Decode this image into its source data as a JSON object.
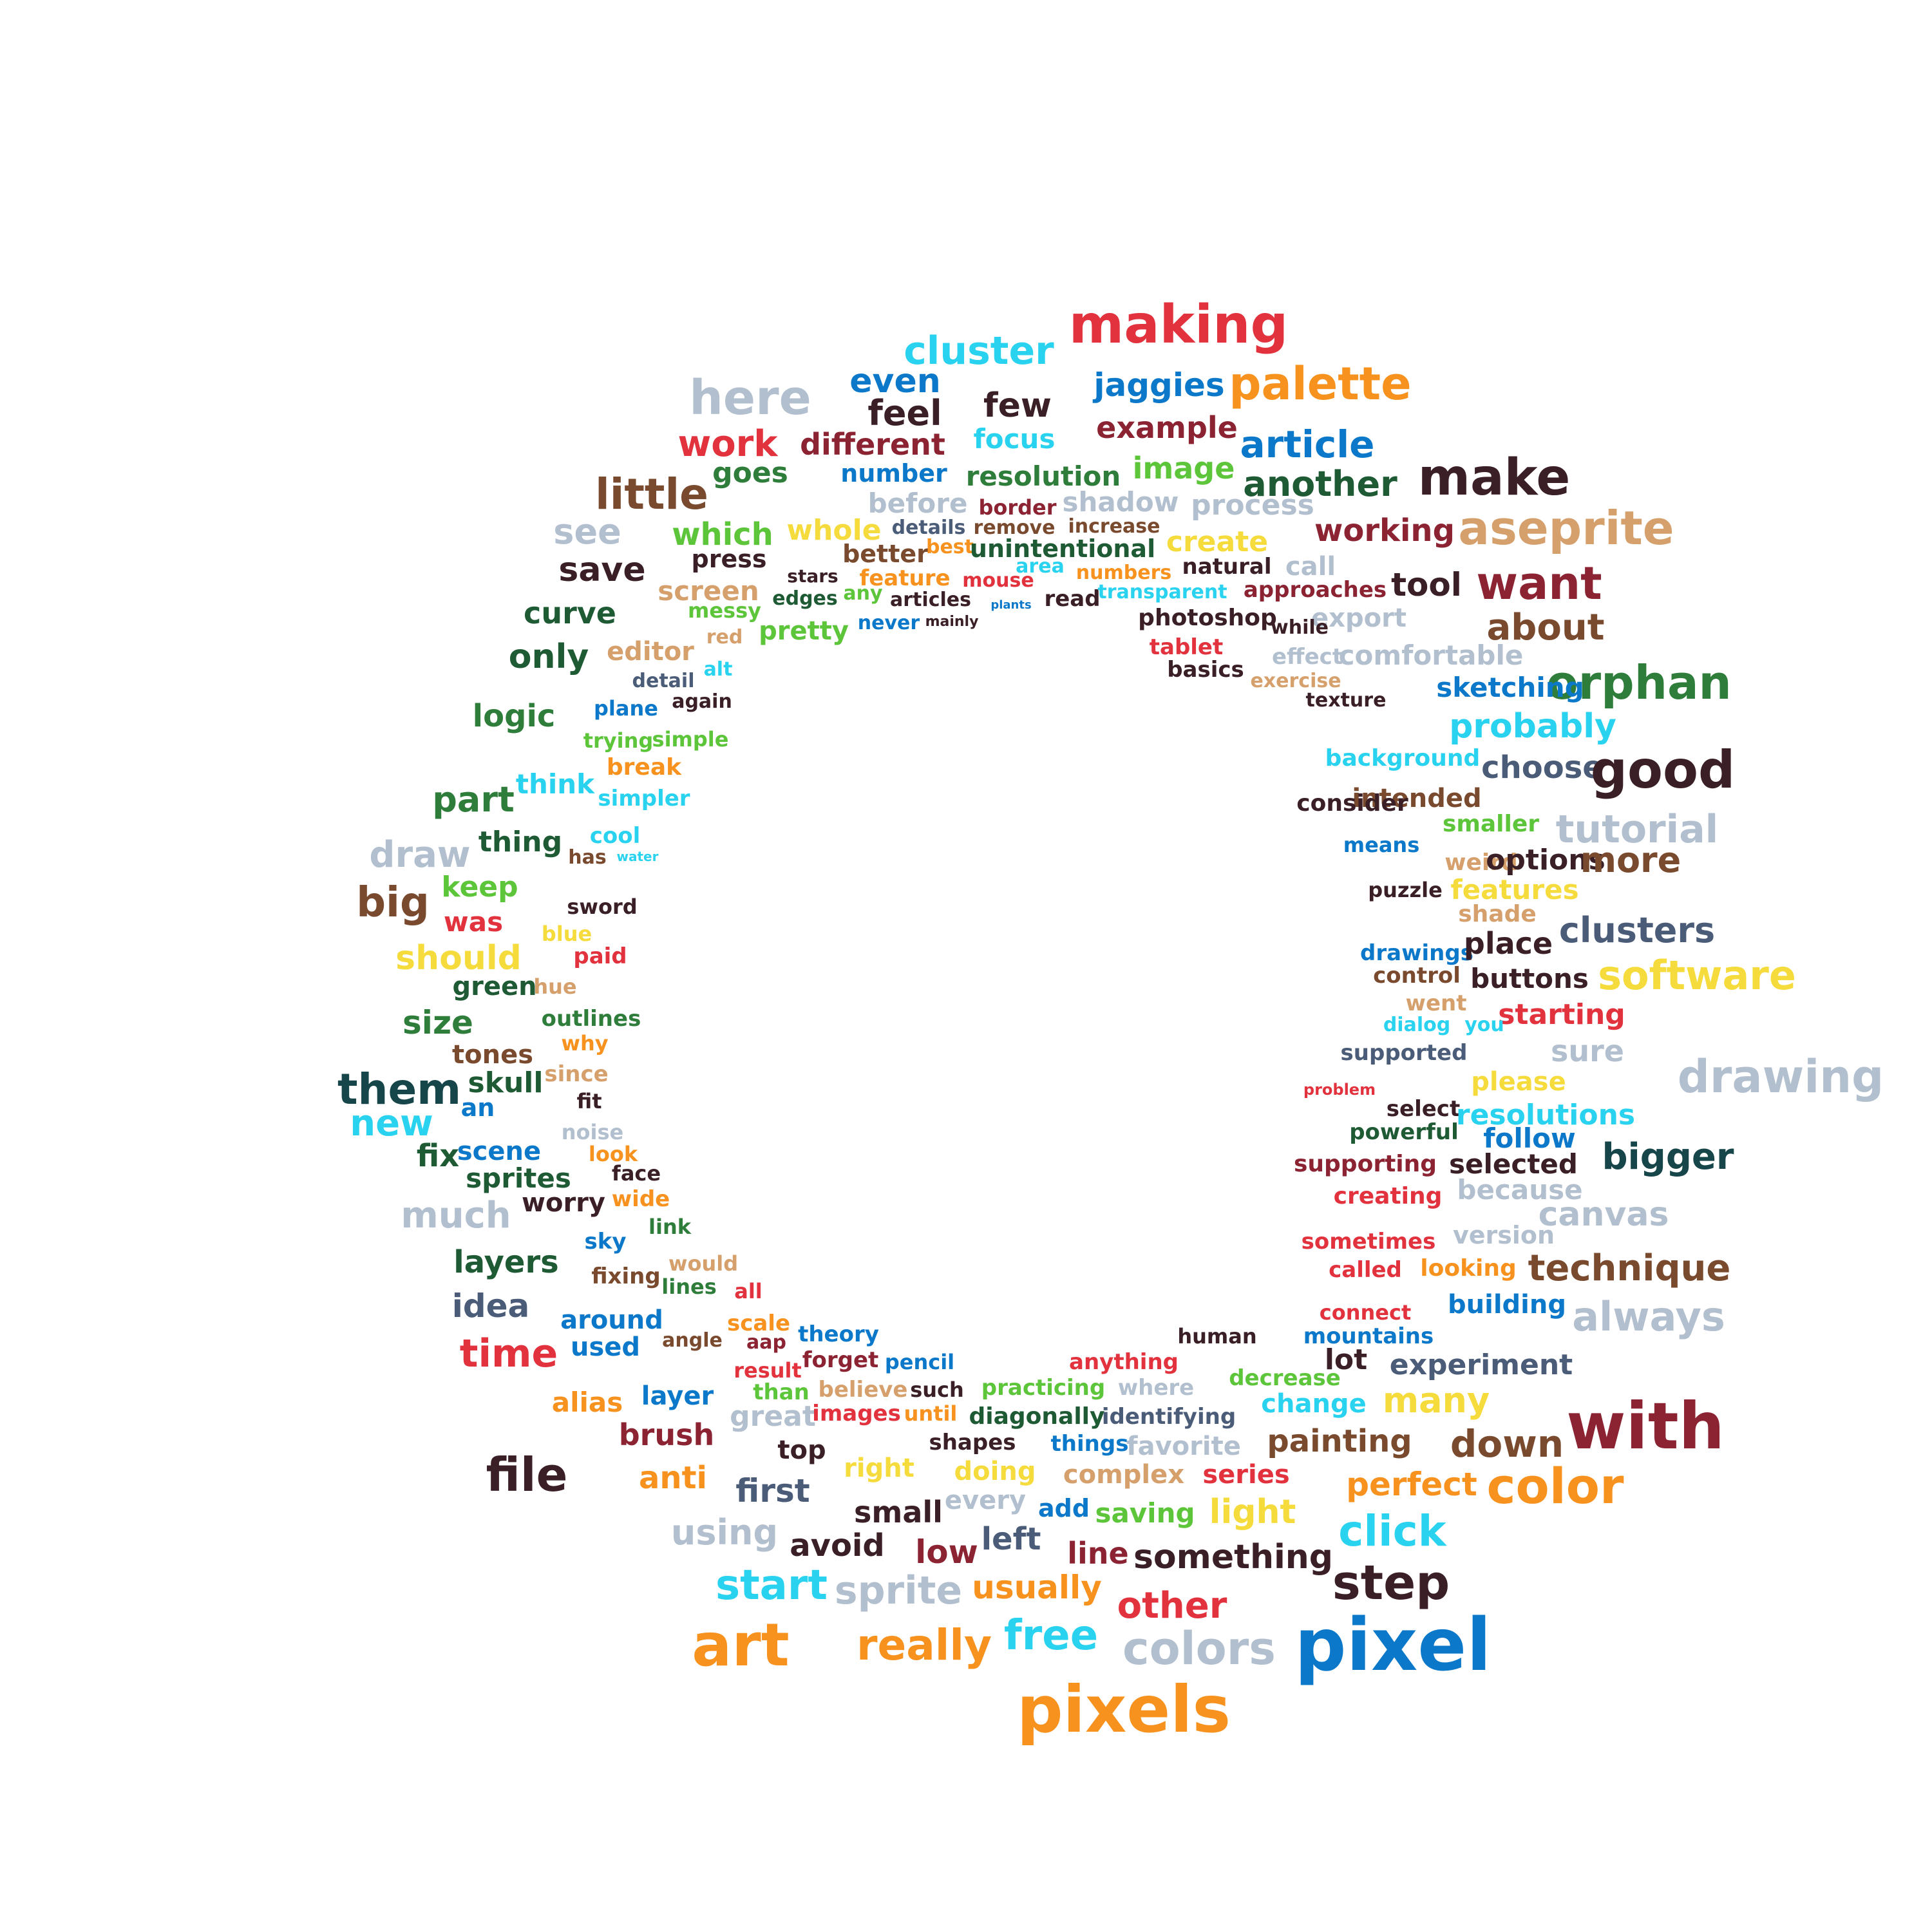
{
  "colors": {
    "red": "#e2323e",
    "orange": "#f7921e",
    "cyan": "#29d3ef",
    "blue": "#0b78c9",
    "navy": "#4a5c78",
    "maroon": "#8b2332",
    "dark": "#3a2026",
    "green": "#2e7d3a",
    "darkgreen": "#1e5a34",
    "lime": "#5cc53a",
    "lightgray": "#b2bfce",
    "tan": "#d6a06c",
    "brown": "#7a4a2e",
    "yellow": "#f5dc3c",
    "teal": "#16454a"
  },
  "words": [
    "making",
    "cluster",
    "here",
    "even",
    "feel",
    "few",
    "jaggies",
    "palette",
    "work",
    "different",
    "focus",
    "example",
    "article",
    "goes",
    "number",
    "resolution",
    "image",
    "another",
    "make",
    "little",
    "before",
    "border",
    "shadow",
    "process",
    "see",
    "which",
    "whole",
    "details",
    "remove",
    "increase",
    "create",
    "working",
    "aseprite",
    "press",
    "better",
    "best",
    "unintentional",
    "save",
    "stars",
    "feature",
    "mouse",
    "area",
    "numbers",
    "natural",
    "call",
    "tool",
    "want",
    "screen",
    "messy",
    "edges",
    "any",
    "articles",
    "read",
    "transparent",
    "approaches",
    "curve",
    "pretty",
    "never",
    "mainly",
    "plants",
    "photoshop",
    "export",
    "about",
    "only",
    "editor",
    "red",
    "tablet",
    "while",
    "effect",
    "comfortable",
    "orphan",
    "alt",
    "detail",
    "basics",
    "exercise",
    "sketching",
    "logic",
    "plane",
    "again",
    "texture",
    "probably",
    "trying",
    "simple",
    "background",
    "part",
    "think",
    "break",
    "choose",
    "good",
    "simpler",
    "intended",
    "consider",
    "cool",
    "smaller",
    "tutorial",
    "draw",
    "thing",
    "means",
    "has",
    "water",
    "weird",
    "options",
    "more",
    "keep",
    "big",
    "puzzle",
    "features",
    "was",
    "sword",
    "shade",
    "should",
    "blue",
    "paid",
    "drawings",
    "place",
    "clusters",
    "green",
    "hue",
    "control",
    "buttons",
    "software",
    "size",
    "outlines",
    "went",
    "starting",
    "tones",
    "why",
    "dialog",
    "you",
    "sure",
    "drawing",
    "them",
    "skull",
    "since",
    "supported",
    "an",
    "new",
    "fit",
    "please",
    "problem",
    "select",
    "resolutions",
    "noise",
    "powerful",
    "follow",
    "fix",
    "scene",
    "look",
    "bigger",
    "sprites",
    "face",
    "supporting",
    "selected",
    "much",
    "worry",
    "wide",
    "creating",
    "because",
    "canvas",
    "link",
    "layers",
    "would",
    "sky",
    "sometimes",
    "version",
    "fixing",
    "looking",
    "technique",
    "idea",
    "lines",
    "all",
    "called",
    "building",
    "around",
    "scale",
    "connect",
    "always",
    "time",
    "used",
    "angle",
    "aap",
    "theory",
    "human",
    "mountains",
    "lot",
    "result",
    "forget",
    "pencil",
    "anything",
    "experiment",
    "alias",
    "layer",
    "than",
    "believe",
    "such",
    "practicing",
    "where",
    "decrease",
    "great",
    "images",
    "until",
    "diagonally",
    "identifying",
    "change",
    "many",
    "with",
    "brush",
    "shapes",
    "things",
    "favorite",
    "painting",
    "down",
    "file",
    "top",
    "right",
    "doing",
    "complex",
    "series",
    "color",
    "anti",
    "first",
    "saving",
    "light",
    "perfect",
    "add",
    "small",
    "every",
    "using",
    "avoid",
    "left",
    "line",
    "something",
    "click",
    "low",
    "start",
    "sprite",
    "usually",
    "step",
    "other",
    "art",
    "really",
    "free",
    "colors",
    "pixel",
    "pixels"
  ]
}
